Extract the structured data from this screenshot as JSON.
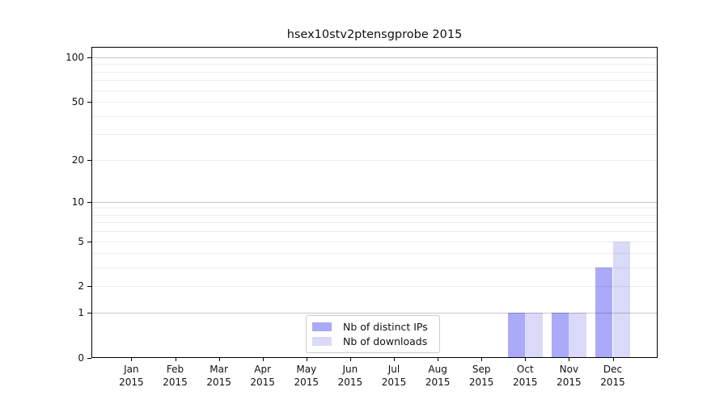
{
  "chart_data": {
    "type": "bar",
    "title": "hsex10stv2ptensgprobe 2015",
    "categories": [
      "Jan",
      "Feb",
      "Mar",
      "Apr",
      "May",
      "Jun",
      "Jul",
      "Aug",
      "Sep",
      "Oct",
      "Nov",
      "Dec"
    ],
    "x_tick_labels": [
      [
        "Jan",
        "2015"
      ],
      [
        "Feb",
        "2015"
      ],
      [
        "Mar",
        "2015"
      ],
      [
        "Apr",
        "2015"
      ],
      [
        "May",
        "2015"
      ],
      [
        "Jun",
        "2015"
      ],
      [
        "Jul",
        "2015"
      ],
      [
        "Aug",
        "2015"
      ],
      [
        "Sep",
        "2015"
      ],
      [
        "Oct",
        "2015"
      ],
      [
        "Nov",
        "2015"
      ],
      [
        "Dec",
        "2015"
      ]
    ],
    "series": [
      {
        "name": "Nb of distinct IPs",
        "color": "#aaaaf8",
        "values": [
          0,
          0,
          0,
          0,
          0,
          0,
          0,
          0,
          0,
          1,
          1,
          3
        ]
      },
      {
        "name": "Nb of downloads",
        "color": "#dadaf8",
        "values": [
          0,
          0,
          0,
          0,
          0,
          0,
          0,
          0,
          0,
          1,
          1,
          5
        ]
      }
    ],
    "y_scale": "log10(1+v)",
    "y_ticks": [
      0,
      1,
      2,
      5,
      10,
      20,
      50,
      100
    ],
    "y_major_gridlines": [
      1,
      10,
      100
    ],
    "y_minor_gridlines": [
      2,
      3,
      4,
      5,
      6,
      7,
      8,
      9,
      20,
      30,
      40,
      50,
      60,
      70,
      80,
      90
    ],
    "ylim": [
      0,
      119
    ],
    "grid": true,
    "legend_position": "bottom-center"
  },
  "colors": {
    "background": "#ffffff",
    "axis": "#000000",
    "text": "#111111",
    "major_grid": "rgba(0,0,0,0.22)",
    "minor_grid": "rgba(0,0,0,0.07)",
    "legend_border": "#cccccc"
  }
}
